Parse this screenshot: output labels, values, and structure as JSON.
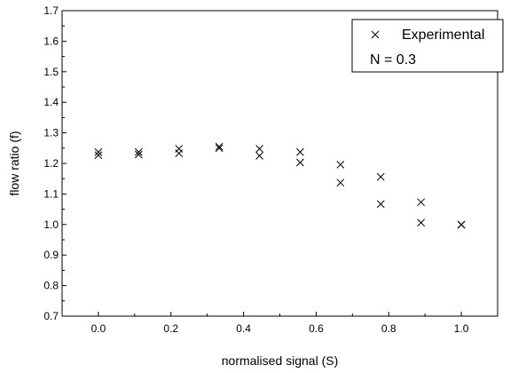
{
  "chart_data": {
    "type": "scatter",
    "xlabel": "normalised signal (S)",
    "ylabel": "flow ratio (f)",
    "xlim": [
      -0.1,
      1.1
    ],
    "ylim": [
      0.7,
      1.7
    ],
    "x_ticks": [
      "0.0",
      "0.2",
      "0.4",
      "0.6",
      "0.8",
      "1.0"
    ],
    "y_ticks": [
      "0.7",
      "0.8",
      "0.9",
      "1.0",
      "1.1",
      "1.2",
      "1.3",
      "1.4",
      "1.5",
      "1.6",
      "1.7"
    ],
    "grid": false,
    "marker": "x",
    "legend": {
      "position": "top-right",
      "entry": "Experimental",
      "annotation": "N = 0.3"
    },
    "series": [
      {
        "name": "Experimental",
        "points": [
          [
            0.0,
            1.237
          ],
          [
            0.0,
            1.227
          ],
          [
            0.111,
            1.237
          ],
          [
            0.111,
            1.229
          ],
          [
            0.222,
            1.248
          ],
          [
            0.222,
            1.233
          ],
          [
            0.333,
            1.255
          ],
          [
            0.333,
            1.25
          ],
          [
            0.444,
            1.248
          ],
          [
            0.444,
            1.225
          ],
          [
            0.556,
            1.237
          ],
          [
            0.556,
            1.203
          ],
          [
            0.667,
            1.196
          ],
          [
            0.667,
            1.137
          ],
          [
            0.778,
            1.156
          ],
          [
            0.778,
            1.067
          ],
          [
            0.889,
            1.073
          ],
          [
            0.889,
            1.006
          ],
          [
            1.0,
            1.0
          ],
          [
            1.0,
            0.999
          ]
        ]
      }
    ]
  }
}
